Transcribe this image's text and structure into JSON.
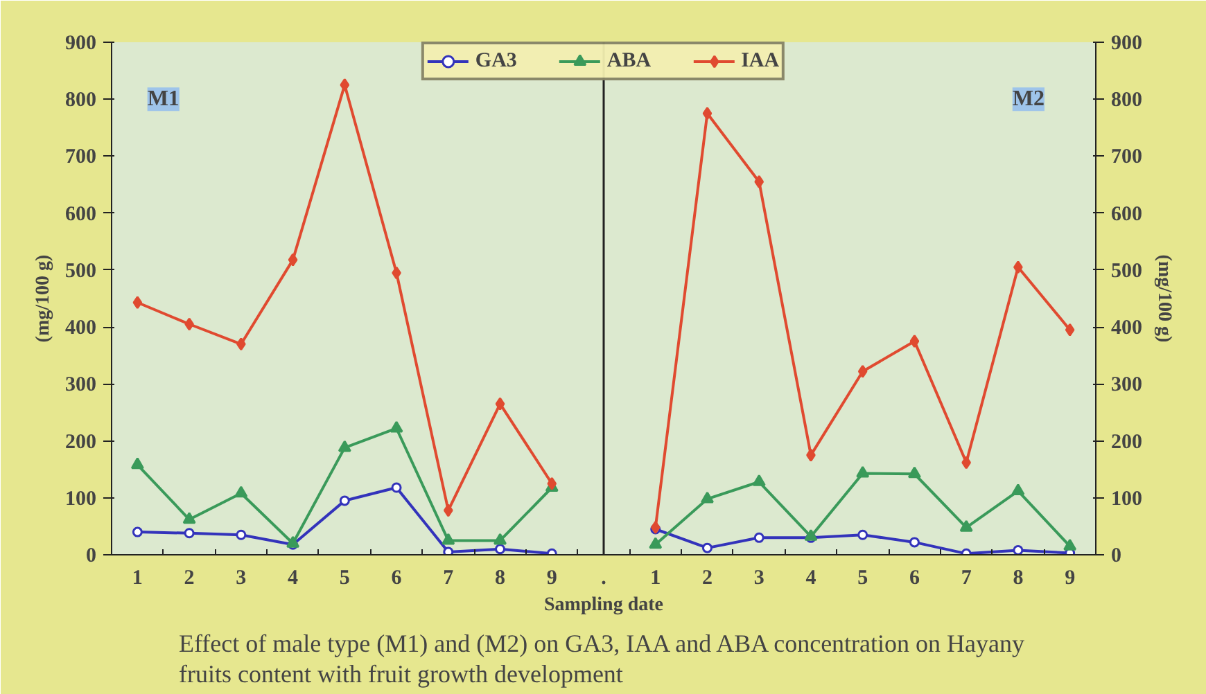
{
  "chart_data": {
    "type": "line",
    "categories": [
      "1",
      "2",
      "3",
      "4",
      "5",
      "6",
      "7",
      "8",
      "9",
      ".",
      "1",
      "2",
      "3",
      "4",
      "5",
      "6",
      "7",
      "8",
      "9"
    ],
    "xlabel": "Sampling date",
    "ylabel": "(mg/100 g)",
    "y2label": "(mg/100 g)",
    "ylim": [
      0,
      900
    ],
    "yticks": [
      0,
      100,
      200,
      300,
      400,
      500,
      600,
      700,
      800,
      900
    ],
    "y2lim": [
      0,
      900
    ],
    "y2ticks": [
      0,
      100,
      200,
      300,
      400,
      500,
      600,
      700,
      800,
      900
    ],
    "grid": false,
    "legend": "top",
    "series": [
      {
        "name": "GA3",
        "color": "#3333bb",
        "marker": "circle",
        "values": [
          40,
          38,
          35,
          18,
          95,
          118,
          5,
          10,
          2,
          null,
          45,
          12,
          30,
          30,
          35,
          22,
          2,
          8,
          3
        ]
      },
      {
        "name": "ABA",
        "color": "#3a9a5a",
        "marker": "triangle",
        "values": [
          158,
          62,
          108,
          20,
          188,
          222,
          25,
          25,
          118,
          null,
          18,
          98,
          128,
          32,
          143,
          142,
          48,
          112,
          15
        ]
      },
      {
        "name": "IAA",
        "color": "#e04a30",
        "marker": "diamond",
        "values": [
          443,
          405,
          370,
          518,
          825,
          495,
          78,
          265,
          125,
          null,
          48,
          775,
          655,
          175,
          322,
          375,
          162,
          505,
          395
        ]
      }
    ],
    "ref_lines": [
      {
        "axis": "x",
        "value": ".",
        "color": "#222222"
      }
    ],
    "annotations": [
      "M1",
      "M2",
      "Effect of male type (M1) and (M2) on GA3, IAA and ABA concentration on Hayany fruits content with fruit growth development"
    ]
  }
}
